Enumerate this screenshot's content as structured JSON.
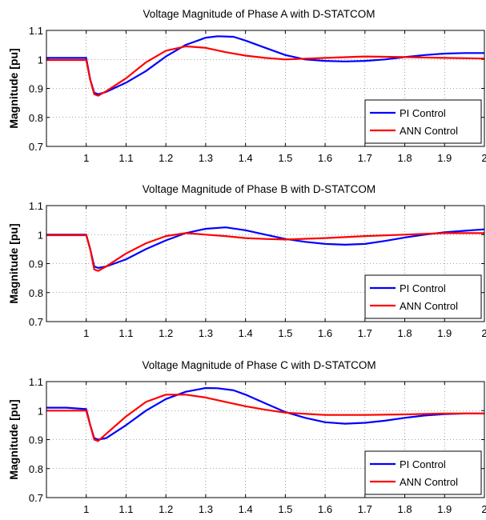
{
  "chart_data": [
    {
      "type": "line",
      "title": "Voltage Magnitude of Phase A   with D-STATCOM",
      "ylabel": "Magnitude [pu]",
      "xlabel": "",
      "xlim": [
        0.9,
        2.0
      ],
      "ylim": [
        0.7,
        1.1
      ],
      "x_ticks": [
        1,
        1.1,
        1.2,
        1.3,
        1.4,
        1.5,
        1.6,
        1.7,
        1.8,
        1.9,
        2
      ],
      "y_ticks": [
        0.7,
        0.8,
        0.9,
        1,
        1.1
      ],
      "grid": true,
      "legend_position": "bottom-right",
      "series": [
        {
          "name": "PI Control",
          "color": "#0000ff",
          "x": [
            0.9,
            0.95,
            1.0,
            1.01,
            1.02,
            1.03,
            1.05,
            1.1,
            1.15,
            1.2,
            1.25,
            1.3,
            1.33,
            1.37,
            1.4,
            1.45,
            1.5,
            1.55,
            1.6,
            1.65,
            1.7,
            1.75,
            1.8,
            1.85,
            1.9,
            1.95,
            2.0
          ],
          "y": [
            1.005,
            1.005,
            1.005,
            0.93,
            0.885,
            0.88,
            0.888,
            0.92,
            0.96,
            1.01,
            1.05,
            1.075,
            1.08,
            1.078,
            1.065,
            1.04,
            1.015,
            1.0,
            0.995,
            0.993,
            0.995,
            1.0,
            1.008,
            1.015,
            1.02,
            1.022,
            1.022
          ]
        },
        {
          "name": "ANN Control",
          "color": "#ff0000",
          "x": [
            0.9,
            0.95,
            1.0,
            1.01,
            1.02,
            1.03,
            1.05,
            1.1,
            1.15,
            1.2,
            1.25,
            1.3,
            1.35,
            1.4,
            1.45,
            1.5,
            1.6,
            1.7,
            1.8,
            1.9,
            2.0
          ],
          "y": [
            0.998,
            0.998,
            0.998,
            0.93,
            0.88,
            0.875,
            0.89,
            0.935,
            0.99,
            1.03,
            1.045,
            1.04,
            1.025,
            1.013,
            1.005,
            1.0,
            1.005,
            1.01,
            1.008,
            1.005,
            1.003
          ]
        }
      ]
    },
    {
      "type": "line",
      "title": "Voltage Magnitude of Phase B   with D-STATCOM",
      "ylabel": "Magnitude [pu]",
      "xlabel": "",
      "xlim": [
        0.9,
        2.0
      ],
      "ylim": [
        0.7,
        1.1
      ],
      "x_ticks": [
        1,
        1.1,
        1.2,
        1.3,
        1.4,
        1.5,
        1.6,
        1.7,
        1.8,
        1.9,
        2
      ],
      "y_ticks": [
        0.7,
        0.8,
        0.9,
        1,
        1.1
      ],
      "grid": true,
      "legend_position": "bottom-right",
      "series": [
        {
          "name": "PI Control",
          "color": "#0000ff",
          "x": [
            0.9,
            0.95,
            1.0,
            1.01,
            1.02,
            1.03,
            1.05,
            1.1,
            1.15,
            1.2,
            1.25,
            1.3,
            1.35,
            1.4,
            1.45,
            1.5,
            1.55,
            1.6,
            1.65,
            1.7,
            1.75,
            1.8,
            1.85,
            1.9,
            1.95,
            2.0
          ],
          "y": [
            1.0,
            1.0,
            1.0,
            0.95,
            0.89,
            0.885,
            0.89,
            0.915,
            0.95,
            0.98,
            1.005,
            1.02,
            1.025,
            1.015,
            1.0,
            0.985,
            0.975,
            0.968,
            0.965,
            0.968,
            0.978,
            0.99,
            1.0,
            1.008,
            1.013,
            1.018
          ]
        },
        {
          "name": "ANN Control",
          "color": "#ff0000",
          "x": [
            0.9,
            0.95,
            1.0,
            1.01,
            1.02,
            1.03,
            1.05,
            1.1,
            1.15,
            1.2,
            1.25,
            1.3,
            1.35,
            1.4,
            1.45,
            1.5,
            1.6,
            1.7,
            1.8,
            1.9,
            2.0
          ],
          "y": [
            0.998,
            0.998,
            0.998,
            0.95,
            0.88,
            0.875,
            0.89,
            0.935,
            0.97,
            0.995,
            1.005,
            1.0,
            0.995,
            0.988,
            0.985,
            0.983,
            0.988,
            0.995,
            1.0,
            1.005,
            1.005
          ]
        }
      ]
    },
    {
      "type": "line",
      "title": "Voltage Magnitude of Phase C   with D-STATCOM",
      "ylabel": "Magnitude [pu]",
      "xlabel": "",
      "xlim": [
        0.9,
        2.0
      ],
      "ylim": [
        0.7,
        1.1
      ],
      "x_ticks": [
        1,
        1.1,
        1.2,
        1.3,
        1.4,
        1.5,
        1.6,
        1.7,
        1.8,
        1.9,
        2
      ],
      "y_ticks": [
        0.7,
        0.8,
        0.9,
        1,
        1.1
      ],
      "grid": true,
      "legend_position": "bottom-right",
      "series": [
        {
          "name": "PI Control",
          "color": "#0000ff",
          "x": [
            0.9,
            0.95,
            1.0,
            1.01,
            1.02,
            1.03,
            1.05,
            1.1,
            1.15,
            1.2,
            1.25,
            1.3,
            1.33,
            1.37,
            1.4,
            1.45,
            1.5,
            1.55,
            1.6,
            1.65,
            1.7,
            1.75,
            1.8,
            1.85,
            1.9,
            1.95,
            2.0
          ],
          "y": [
            1.01,
            1.01,
            1.005,
            0.95,
            0.905,
            0.9,
            0.905,
            0.95,
            1.0,
            1.04,
            1.065,
            1.078,
            1.077,
            1.07,
            1.055,
            1.025,
            0.995,
            0.975,
            0.96,
            0.955,
            0.958,
            0.965,
            0.975,
            0.983,
            0.988,
            0.99,
            0.99
          ]
        },
        {
          "name": "ANN Control",
          "color": "#ff0000",
          "x": [
            0.9,
            0.95,
            1.0,
            1.01,
            1.02,
            1.03,
            1.05,
            1.1,
            1.15,
            1.2,
            1.25,
            1.3,
            1.35,
            1.4,
            1.45,
            1.5,
            1.6,
            1.7,
            1.8,
            1.9,
            2.0
          ],
          "y": [
            1.0,
            1.0,
            1.0,
            0.95,
            0.9,
            0.895,
            0.92,
            0.98,
            1.03,
            1.055,
            1.055,
            1.045,
            1.03,
            1.015,
            1.003,
            0.993,
            0.985,
            0.985,
            0.987,
            0.99,
            0.99
          ]
        }
      ]
    }
  ]
}
